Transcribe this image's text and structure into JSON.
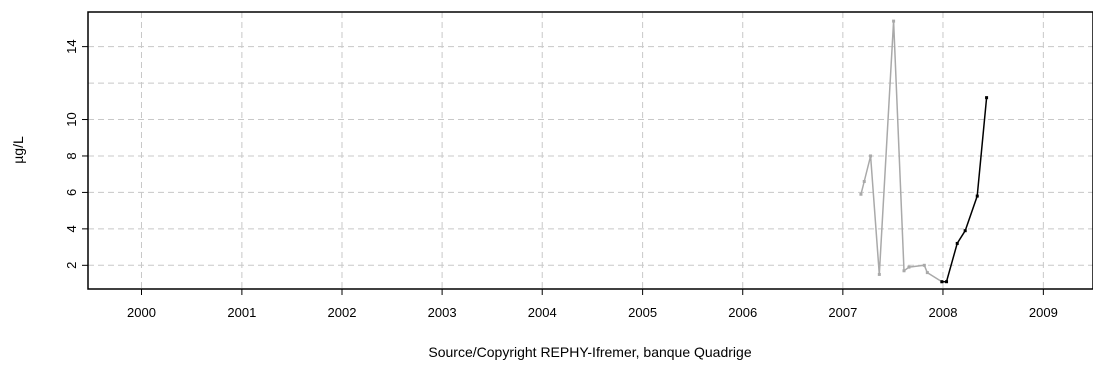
{
  "chart_data": {
    "type": "line",
    "title": "",
    "xlabel": "Source/Copyright REPHY-Ifremer, banque Quadrige",
    "ylabel": "µg/L",
    "xlim": [
      "1999-06-20",
      "2009-07-01"
    ],
    "ylim": [
      0.7,
      15.9
    ],
    "x_ticks": [
      "2000",
      "2001",
      "2002",
      "2003",
      "2004",
      "2005",
      "2006",
      "2007",
      "2008",
      "2009"
    ],
    "y_ticks": [
      2,
      4,
      6,
      8,
      10,
      14
    ],
    "y_grid": [
      2,
      4,
      6,
      8,
      10,
      12,
      14
    ],
    "grid": true,
    "series": [
      {
        "color": "#a9a9a9",
        "points": [
          {
            "x": "2007-03-08",
            "y": 5.9
          },
          {
            "x": "2007-03-20",
            "y": 6.6
          },
          {
            "x": "2007-04-12",
            "y": 8.0
          },
          {
            "x": "2007-05-14",
            "y": 1.5
          },
          {
            "x": "2007-07-05",
            "y": 15.4
          },
          {
            "x": "2007-08-12",
            "y": 1.7
          },
          {
            "x": "2007-08-30",
            "y": 1.9
          },
          {
            "x": "2007-10-25",
            "y": 2.0
          },
          {
            "x": "2007-11-05",
            "y": 1.6
          },
          {
            "x": "2007-12-28",
            "y": 1.1
          }
        ]
      },
      {
        "color": "#000000",
        "points": [
          {
            "x": "2007-12-28",
            "y": 1.1
          },
          {
            "x": "2008-01-14",
            "y": 1.1
          },
          {
            "x": "2008-02-22",
            "y": 3.2
          },
          {
            "x": "2008-03-22",
            "y": 3.9
          },
          {
            "x": "2008-05-05",
            "y": 5.8
          },
          {
            "x": "2008-06-08",
            "y": 11.2
          }
        ]
      }
    ]
  }
}
